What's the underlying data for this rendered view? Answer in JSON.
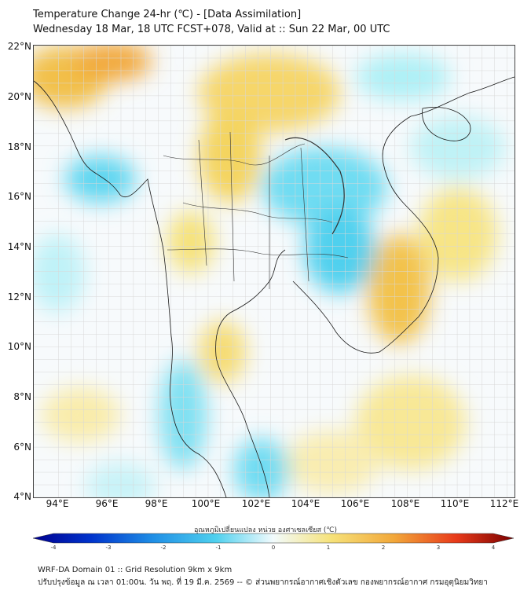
{
  "header": {
    "title": "Temperature Change 24-hr (℃) - [Data Assimilation]",
    "subtitle": "Wednesday 18 Mar, 18 UTC FCST+078, Valid at :: Sun 22 Mar, 00 UTC"
  },
  "map": {
    "lat_labels": [
      "22°N",
      "20°N",
      "18°N",
      "16°N",
      "14°N",
      "12°N",
      "10°N",
      "8°N",
      "6°N",
      "4°N"
    ],
    "lon_labels": [
      "94°E",
      "96°E",
      "98°E",
      "100°E",
      "102°E",
      "104°E",
      "106°E",
      "108°E",
      "110°E",
      "112°E"
    ],
    "lat_range": [
      4,
      22
    ],
    "lon_range": [
      93,
      112.3
    ],
    "colors": {
      "warm": "#f6e27a",
      "warmer": "#f2b53c",
      "cool": "#8fe6f2",
      "cooler": "#4fd0ee",
      "border": "#1a1a1a"
    }
  },
  "colorbar": {
    "label": "อุณหภูมิเปลี่ยนแปลง หน่วย องศาเซลเซียส (℃)",
    "ticks": [
      "-4",
      "-3",
      "-2",
      "-1",
      "0",
      "1",
      "2",
      "3",
      "4"
    ],
    "range": [
      -4,
      4
    ]
  },
  "footer": {
    "line1": "WRF-DA Domain 01 :: Grid Resolution 9km x 9km",
    "line2": "ปรับปรุงข้อมูล ณ เวลา 01:00น. วัน พฤ. ที่ 19 มี.ค. 2569 -- © ส่วนพยากรณ์อากาศเชิงตัวเลข กองพยากรณ์อากาศ กรมอุตุนิยมวิทยา"
  }
}
